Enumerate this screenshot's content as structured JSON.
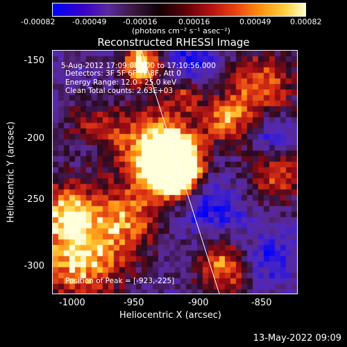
{
  "colorbar": {
    "ticks": [
      "-0.00082",
      "-0.00049",
      "-0.00016",
      "0.00016",
      "0.00049",
      "0.00082"
    ],
    "unit": "(photons cm⁻² s⁻¹ asec⁻²)"
  },
  "plot": {
    "title": "Reconstructed RHESSI Image",
    "info": {
      "time": "5-Aug-2012 17:09:08.000 to 17:10:56.000",
      "detectors": "Detectors: 3F 5F 6F 7F 8F, Att 0",
      "energy": "Energy Range: 12.0 - 25.0 keV",
      "clean": "Clean    Total counts: 2.63E+03",
      "peak": "Position of Peak = [-923,-225]"
    },
    "xlabel": "Heliocentric X (arcsec)",
    "ylabel": "Heliocentric Y (arcsec)",
    "xticks": [
      "-1000",
      "-950",
      "-900",
      "-850"
    ],
    "yticks": [
      "-150",
      "-200",
      "-250",
      "-300"
    ]
  },
  "footer": {
    "timestamp": "13-May-2022 09:09"
  },
  "chart_data": {
    "type": "heatmap",
    "title": "Reconstructed RHESSI Image",
    "xlabel": "Heliocentric X (arcsec)",
    "ylabel": "Heliocentric Y (arcsec)",
    "xlim": [
      -1020,
      -825
    ],
    "ylim": [
      -325,
      -130
    ],
    "colorbar_range": [
      -0.00082,
      0.00082
    ],
    "peak": {
      "x": -923,
      "y": -225
    }
  }
}
